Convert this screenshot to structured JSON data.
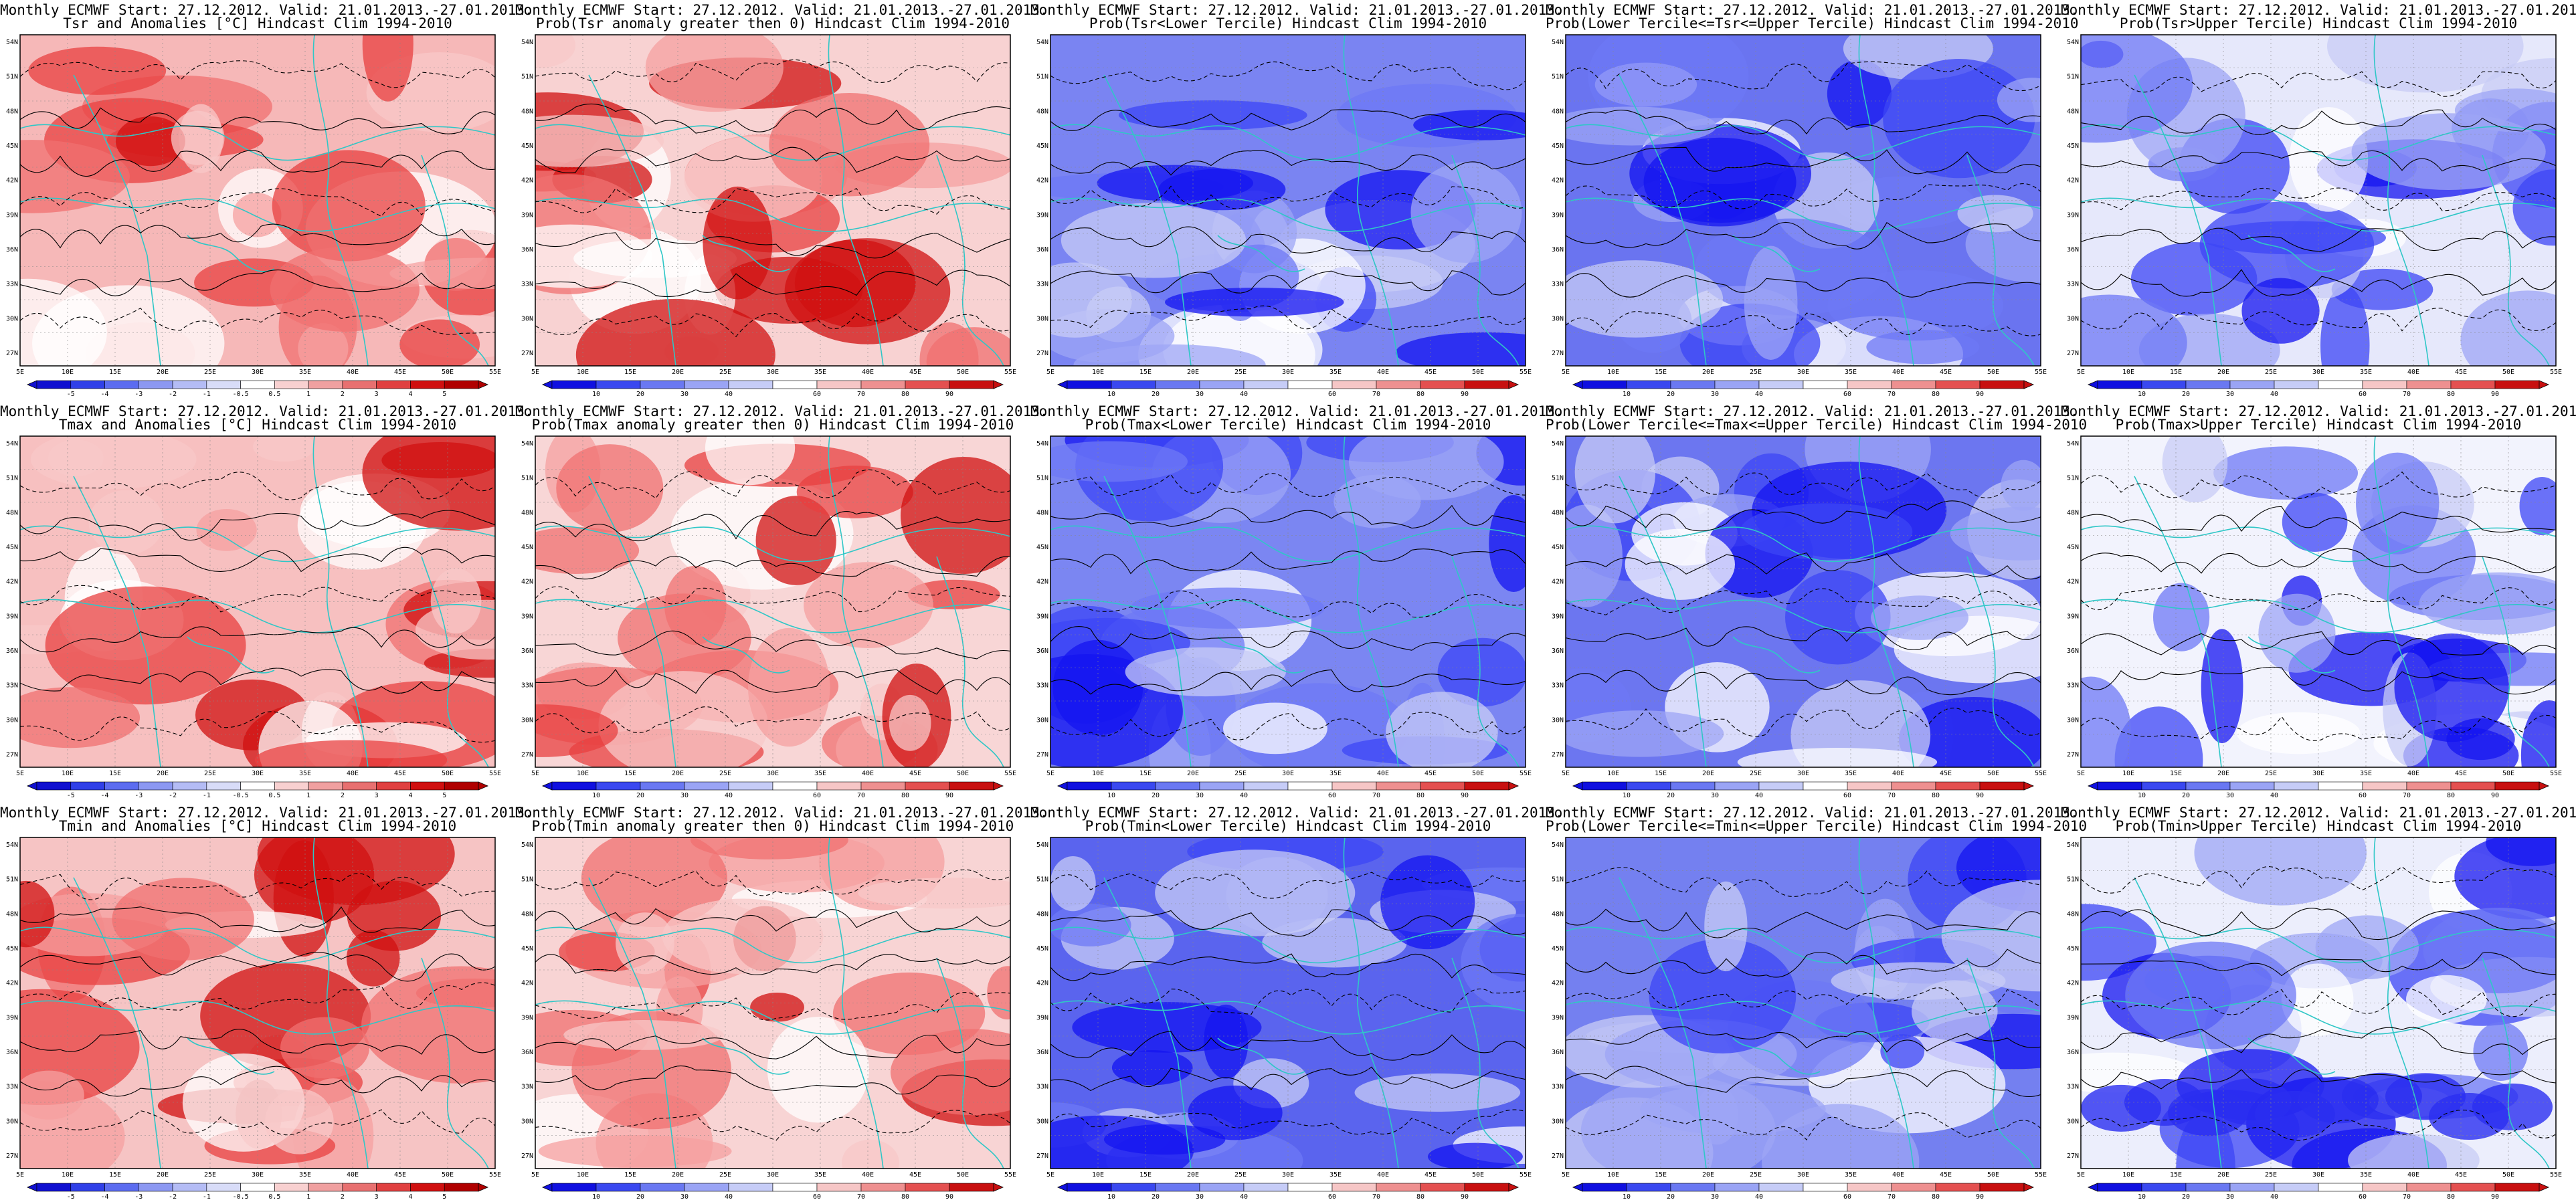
{
  "figure": {
    "header": "Monthly ECMWF Start: 27.12.2012. Valid: 21.01.2013.-27.01.2013.",
    "lat_labels": [
      "54N",
      "51N",
      "48N",
      "45N",
      "42N",
      "39N",
      "36N",
      "33N",
      "30N",
      "27N"
    ],
    "lon_labels": [
      "5E",
      "10E",
      "15E",
      "20E",
      "25E",
      "30E",
      "35E",
      "40E",
      "45E",
      "50E",
      "55E"
    ],
    "colors": {
      "coast": "#2fc7c7",
      "contour": "#000000",
      "blue_scale": [
        "#1414f0",
        "#3c46f5",
        "#6e78f5",
        "#9ea6f5",
        "#c8ccf5",
        "#ffffff"
      ],
      "red_scale": [
        "#ffffff",
        "#f8c8c8",
        "#f5a0a0",
        "#f07070",
        "#e84040",
        "#d01010"
      ]
    }
  },
  "panels": [
    {
      "id": "r1c1",
      "subtitle": "Tsr and Anomalies [°C] Hindcast Clim 1994-2010",
      "scale": "anom",
      "base": "#f6b8b8",
      "ticks": [
        "-5",
        "-4",
        "-3",
        "-2",
        "-1",
        "-0.5",
        "0.5",
        "1",
        "2",
        "3",
        "4",
        "5"
      ]
    },
    {
      "id": "r1c2",
      "subtitle": "Prob(Tsr anomaly greater then 0) Hindcast Clim 1994-2010",
      "scale": "prob",
      "base": "#f8d2d2",
      "ticks": [
        "10",
        "20",
        "30",
        "40",
        "60",
        "70",
        "80",
        "90"
      ]
    },
    {
      "id": "r1c3",
      "subtitle": "Prob(Tsr<Lower Tercile) Hindcast Clim 1994-2010",
      "scale": "prob",
      "base": "#7a84f2",
      "ticks": [
        "10",
        "20",
        "30",
        "40",
        "60",
        "70",
        "80",
        "90"
      ]
    },
    {
      "id": "r1c4",
      "subtitle": "Prob(Lower Tercile<=Tsr<=Upper Tercile) Hindcast Clim 1994-2010",
      "scale": "prob",
      "base": "#6a74f0",
      "ticks": [
        "10",
        "20",
        "30",
        "40",
        "60",
        "70",
        "80",
        "90"
      ]
    },
    {
      "id": "r1c5",
      "subtitle": "Prob(Tsr>Upper Tercile) Hindcast Clim 1994-2010",
      "scale": "prob",
      "base": "#e6e8fb",
      "ticks": [
        "10",
        "20",
        "30",
        "40",
        "60",
        "70",
        "80",
        "90"
      ]
    },
    {
      "id": "r2c1",
      "subtitle": "Tmax and Anomalies [°C] Hindcast Clim 1994-2010",
      "scale": "anom",
      "base": "#f7c0c0",
      "ticks": [
        "-5",
        "-4",
        "-3",
        "-2",
        "-1",
        "-0.5",
        "0.5",
        "1",
        "2",
        "3",
        "4",
        "5"
      ]
    },
    {
      "id": "r2c2",
      "subtitle": "Prob(Tmax anomaly greater then 0) Hindcast Clim 1994-2010",
      "scale": "prob",
      "base": "#f8d6d6",
      "ticks": [
        "10",
        "20",
        "30",
        "40",
        "60",
        "70",
        "80",
        "90"
      ]
    },
    {
      "id": "r2c3",
      "subtitle": "Prob(Tmax<Lower Tercile) Hindcast Clim 1994-2010",
      "scale": "prob",
      "base": "#7b86f2",
      "ticks": [
        "10",
        "20",
        "30",
        "40",
        "60",
        "70",
        "80",
        "90"
      ]
    },
    {
      "id": "r2c4",
      "subtitle": "Prob(Lower Tercile<=Tmax<=Upper Tercile) Hindcast Clim 1994-2010",
      "scale": "prob",
      "base": "#6c76f0",
      "ticks": [
        "10",
        "20",
        "30",
        "40",
        "60",
        "70",
        "80",
        "90"
      ]
    },
    {
      "id": "r2c5",
      "subtitle": "Prob(Tmax>Upper Tercile) Hindcast Clim 1994-2010",
      "scale": "prob",
      "base": "#f2f3fd",
      "ticks": [
        "10",
        "20",
        "30",
        "40",
        "60",
        "70",
        "80",
        "90"
      ]
    },
    {
      "id": "r3c1",
      "subtitle": "Tmin and Anomalies [°C] Hindcast Clim 1994-2010",
      "scale": "anom",
      "base": "#f6c4c4",
      "ticks": [
        "-5",
        "-4",
        "-3",
        "-2",
        "-1",
        "-0.5",
        "0.5",
        "1",
        "2",
        "3",
        "4",
        "5"
      ]
    },
    {
      "id": "r3c2",
      "subtitle": "Prob(Tmin anomaly greater then 0) Hindcast Clim 1994-2010",
      "scale": "prob",
      "base": "#f8d4d4",
      "ticks": [
        "10",
        "20",
        "30",
        "40",
        "60",
        "70",
        "80",
        "90"
      ]
    },
    {
      "id": "r3c3",
      "subtitle": "Prob(Tmin<Lower Tercile) Hindcast Clim 1994-2010",
      "scale": "prob",
      "base": "#5a64ee",
      "ticks": [
        "10",
        "20",
        "30",
        "40",
        "60",
        "70",
        "80",
        "90"
      ]
    },
    {
      "id": "r3c4",
      "subtitle": "Prob(Lower Tercile<=Tmin<=Upper Tercile) Hindcast Clim 1994-2010",
      "scale": "prob",
      "base": "#7480f0",
      "ticks": [
        "10",
        "20",
        "30",
        "40",
        "60",
        "70",
        "80",
        "90"
      ]
    },
    {
      "id": "r3c5",
      "subtitle": "Prob(Tmin>Upper Tercile) Hindcast Clim 1994-2010",
      "scale": "prob",
      "base": "#eceefc",
      "ticks": [
        "10",
        "20",
        "30",
        "40",
        "60",
        "70",
        "80",
        "90"
      ]
    }
  ]
}
